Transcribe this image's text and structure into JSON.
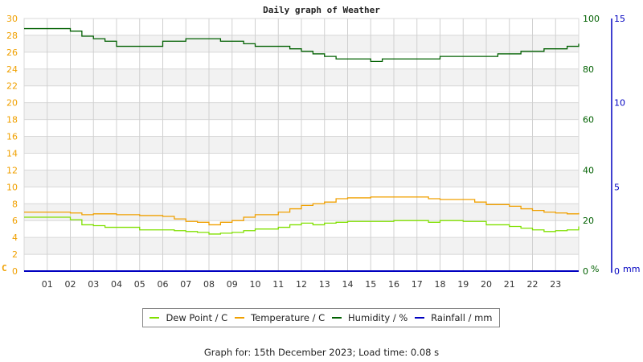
{
  "chart_data": {
    "type": "line",
    "title": "Daily graph of Weather",
    "xlabel": "",
    "x_tick_labels": [
      "01",
      "02",
      "03",
      "04",
      "05",
      "06",
      "07",
      "08",
      "09",
      "10",
      "11",
      "12",
      "13",
      "14",
      "15",
      "16",
      "17",
      "18",
      "19",
      "20",
      "21",
      "22",
      "23"
    ],
    "x_range_hours": [
      0,
      24
    ],
    "axes": {
      "left": {
        "label": "C",
        "ticks": [
          0,
          2,
          4,
          6,
          8,
          10,
          12,
          14,
          16,
          18,
          20,
          22,
          24,
          26,
          28,
          30
        ],
        "range": [
          0,
          30
        ],
        "color": "#f0a000"
      },
      "right1": {
        "label": "%",
        "ticks": [
          0,
          20,
          40,
          60,
          80,
          100
        ],
        "range": [
          0,
          100
        ],
        "color": "#006000"
      },
      "right2": {
        "label": "mm",
        "ticks": [
          0,
          5,
          10,
          15
        ],
        "range": [
          0,
          15
        ],
        "color": "#0000c0"
      }
    },
    "grid": true,
    "legend_position": "bottom",
    "series": [
      {
        "name": "Dew Point / C",
        "color": "#80e000",
        "axis": "left",
        "x": [
          0,
          1,
          1.8,
          2,
          2.5,
          3,
          3.5,
          4,
          5,
          6,
          6.5,
          7,
          7.5,
          8,
          8.5,
          9,
          9.5,
          10,
          11,
          11.5,
          12,
          12.5,
          13,
          13.5,
          14,
          15,
          16,
          17,
          17.5,
          18,
          19,
          20,
          21,
          21.5,
          22,
          22.5,
          23,
          23.5,
          24
        ],
        "values": [
          6.4,
          6.4,
          6.4,
          6.1,
          5.5,
          5.4,
          5.2,
          5.2,
          4.9,
          4.9,
          4.8,
          4.7,
          4.6,
          4.4,
          4.5,
          4.6,
          4.8,
          5.0,
          5.2,
          5.5,
          5.7,
          5.5,
          5.7,
          5.8,
          5.9,
          5.9,
          6.0,
          6.0,
          5.8,
          6.0,
          5.9,
          5.5,
          5.3,
          5.1,
          4.9,
          4.7,
          4.8,
          4.9,
          5.3
        ]
      },
      {
        "name": "Temperature / C",
        "color": "#f0a000",
        "axis": "left",
        "x": [
          0,
          1,
          1.8,
          2,
          2.5,
          3,
          4,
          5,
          6,
          6.5,
          7,
          7.5,
          8,
          8.5,
          9,
          9.5,
          10,
          11,
          11.5,
          12,
          12.5,
          13,
          13.5,
          14,
          15,
          16,
          17,
          17.5,
          18,
          19,
          19.5,
          20,
          21,
          21.5,
          22,
          22.5,
          23,
          23.5,
          24
        ],
        "values": [
          7.0,
          7.0,
          7.0,
          6.9,
          6.7,
          6.8,
          6.7,
          6.6,
          6.5,
          6.2,
          5.9,
          5.8,
          5.5,
          5.8,
          6.0,
          6.4,
          6.7,
          7.0,
          7.4,
          7.8,
          8.0,
          8.2,
          8.6,
          8.7,
          8.8,
          8.8,
          8.8,
          8.6,
          8.5,
          8.5,
          8.2,
          7.9,
          7.7,
          7.4,
          7.2,
          7.0,
          6.9,
          6.8,
          6.9
        ]
      },
      {
        "name": "Humidity / %",
        "color": "#006000",
        "axis": "right1",
        "x": [
          0,
          1.8,
          2,
          2.5,
          3,
          3.5,
          4,
          5,
          5.5,
          6,
          6.5,
          7,
          7.5,
          8,
          8.5,
          9,
          9.5,
          10,
          11,
          11.5,
          12,
          12.5,
          13,
          13.5,
          14,
          14.5,
          15,
          15.5,
          16,
          16.5,
          17,
          17.5,
          18,
          19,
          20,
          20.5,
          21,
          21.5,
          22,
          22.5,
          23,
          23.5,
          24
        ],
        "values": [
          96,
          96,
          95,
          93,
          92,
          91,
          89,
          89,
          89,
          91,
          91,
          92,
          92,
          92,
          91,
          91,
          90,
          89,
          89,
          88,
          87,
          86,
          85,
          84,
          84,
          84,
          83,
          84,
          84,
          84,
          84,
          84,
          85,
          85,
          85,
          86,
          86,
          87,
          87,
          88,
          88,
          89,
          90
        ]
      },
      {
        "name": "Rainfall / mm",
        "color": "#0000c0",
        "axis": "right2",
        "x": [
          0,
          24
        ],
        "values": [
          0,
          0
        ]
      }
    ]
  },
  "legend": {
    "items": [
      {
        "label": "Dew Point / C",
        "color": "#80e000"
      },
      {
        "label": "Temperature / C",
        "color": "#f0a000"
      },
      {
        "label": "Humidity / %",
        "color": "#006000"
      },
      {
        "label": "Rainfall / mm",
        "color": "#0000c0"
      }
    ]
  },
  "footer": {
    "text": "Graph for: 15th December 2023; Load time: 0.08 s"
  }
}
